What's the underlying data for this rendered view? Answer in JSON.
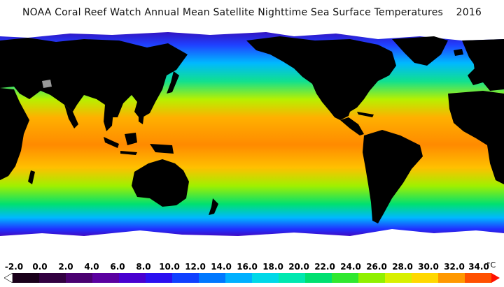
{
  "title": "NOAA Coral Reef Watch Annual Mean Satellite Nighttime Sea Surface Temperatures    2016",
  "legend": {
    "unit": "°C",
    "ticks": [
      "-2.0",
      "0.0",
      "2.0",
      "4.0",
      "6.0",
      "8.0",
      "10.0",
      "12.0",
      "14.0",
      "16.0",
      "18.0",
      "20.0",
      "22.0",
      "24.0",
      "26.0",
      "28.0",
      "30.0",
      "32.0",
      "34.0"
    ],
    "colors": [
      "#ffffff",
      "#1a001a",
      "#320040",
      "#4a0070",
      "#5a00a0",
      "#4800d0",
      "#2a10f0",
      "#1040ff",
      "#0078ff",
      "#00b0ff",
      "#00d8e8",
      "#00e8b0",
      "#00e070",
      "#30e830",
      "#90f000",
      "#d8f000",
      "#ffd800",
      "#ff9800",
      "#ff5000",
      "#ff1000"
    ]
  },
  "map": {
    "land_color": "#000000",
    "ice_color": "#ffffff"
  }
}
